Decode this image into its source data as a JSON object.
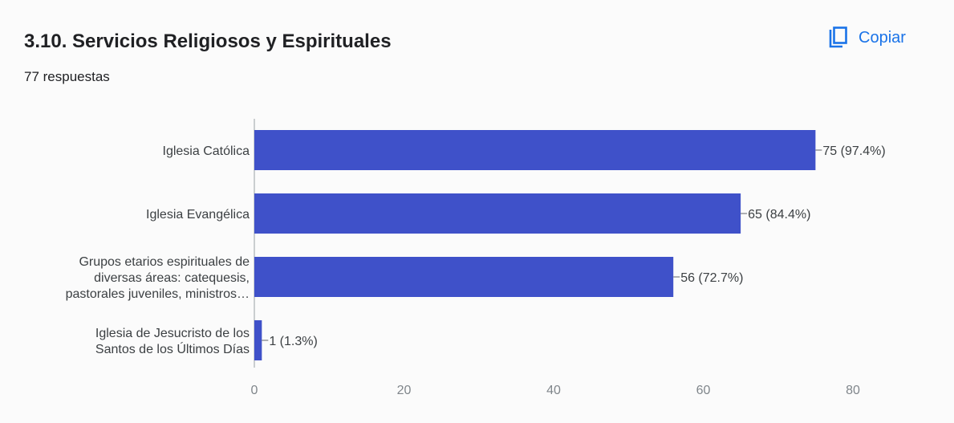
{
  "header": {
    "title": "3.10. Servicios Religiosos y Espirituales",
    "responses": "77 respuestas",
    "copy_label": "Copiar"
  },
  "colors": {
    "bar": "#3f51c9",
    "accent": "#1a73e8",
    "axis": "#9aa0a6"
  },
  "icons": {
    "copy": "copy-icon"
  },
  "chart_data": {
    "type": "bar",
    "orientation": "horizontal",
    "title": "3.10. Servicios Religiosos y Espirituales",
    "categories": [
      [
        "Iglesia Católica"
      ],
      [
        "Iglesia Evangélica"
      ],
      [
        "Grupos etarios espirituales de",
        "diversas áreas: catequesis,",
        "pastorales juveniles, ministros…"
      ],
      [
        "Iglesia de Jesucristo de los",
        "Santos de los Últimos Días"
      ]
    ],
    "values": [
      75,
      65,
      56,
      1
    ],
    "value_labels": [
      "75 (97.4%)",
      "65 (84.4%)",
      "56 (72.7%)",
      "1 (1.3%)"
    ],
    "xlim": [
      0,
      80
    ],
    "xticks": [
      "0",
      "20",
      "40",
      "60",
      "80"
    ],
    "grid": false
  }
}
